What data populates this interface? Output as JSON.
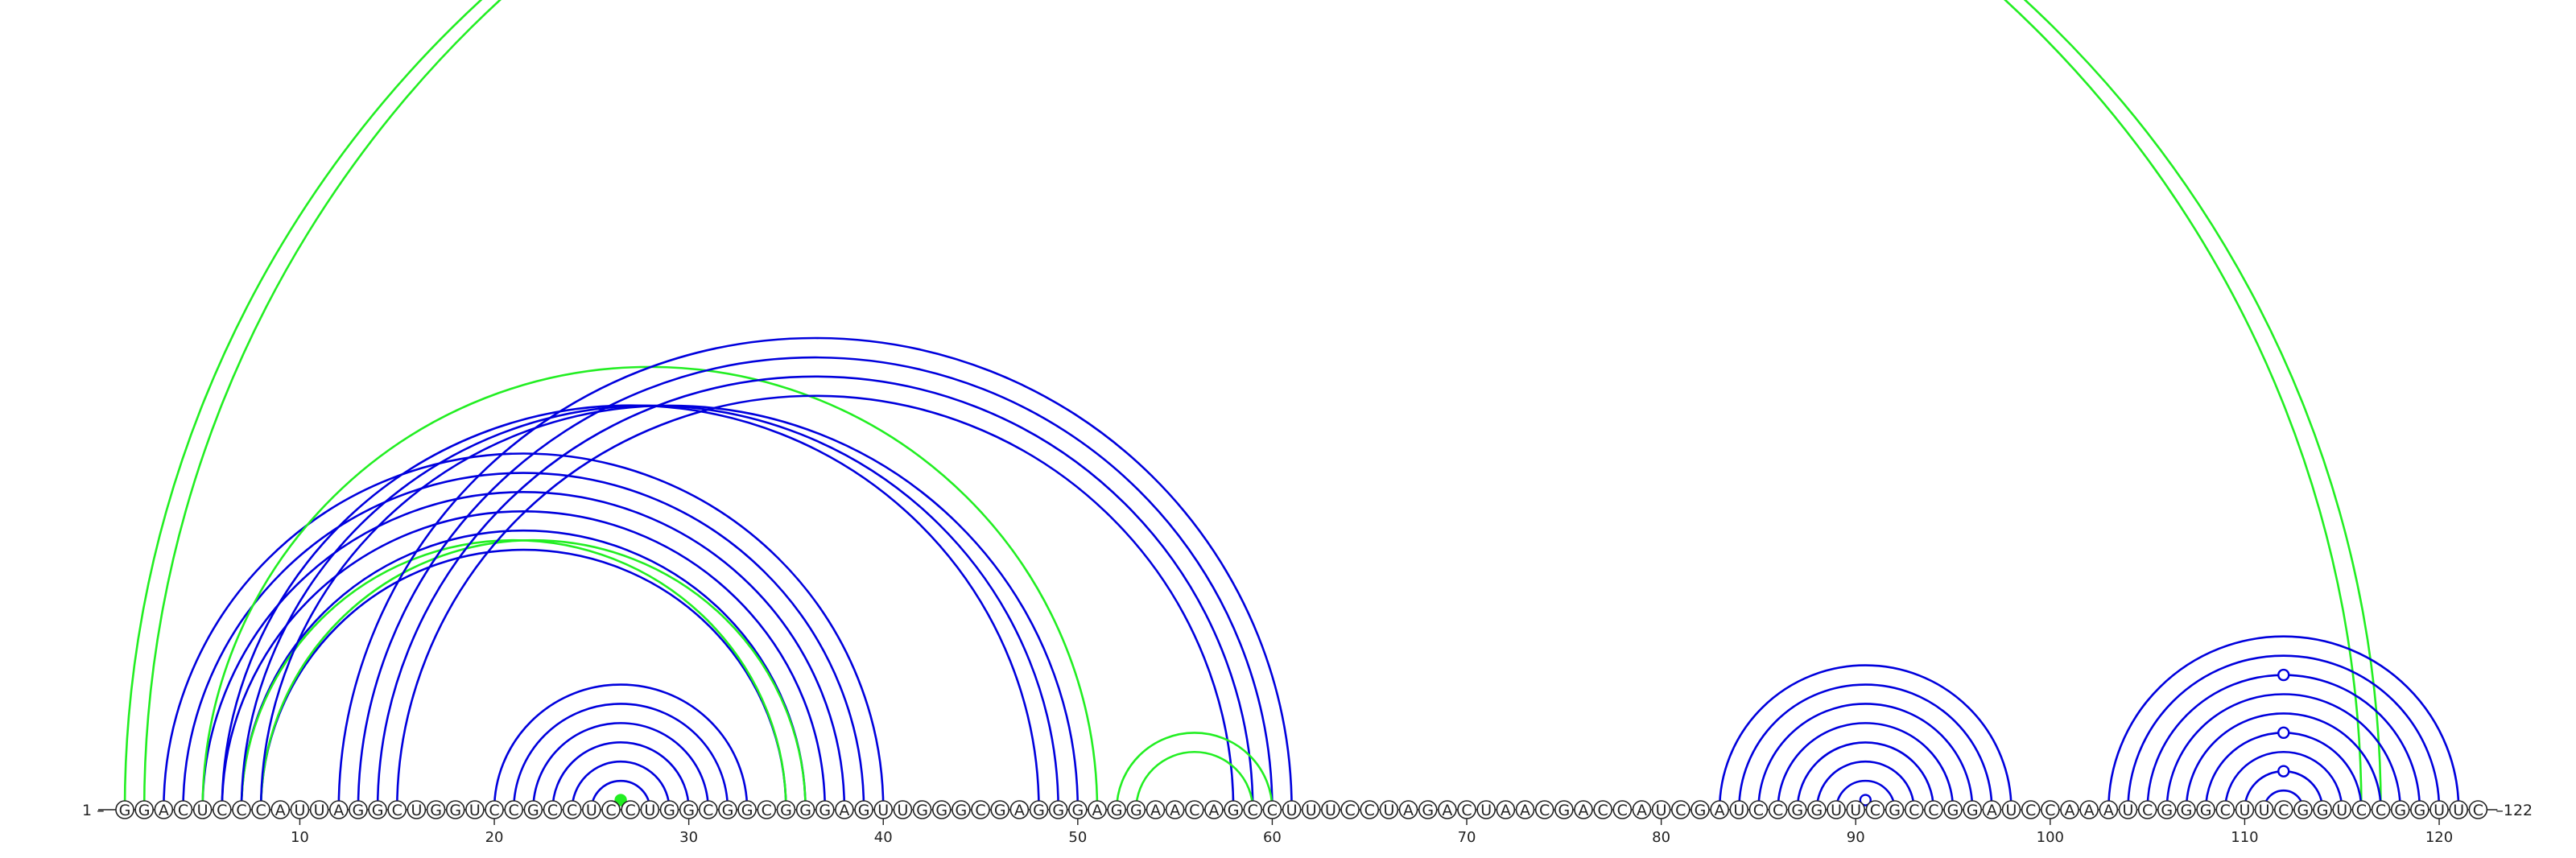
{
  "diagram": {
    "sequence": "GGACUCCCAUUAGGCUGGUCCGCCUCCUGGCGGCGGGAGUUGGGCGAGGGAGGAACAGCCUUUCCUAGACUAACGACCAUCGAUCCGGUUCGCCGGAUCCAAAUCGGGCUUCGGUCCGGUUC",
    "start_label": "1",
    "end_label": "122",
    "tick_positions": [
      10,
      20,
      30,
      40,
      50,
      60,
      70,
      80,
      90,
      100,
      110,
      120
    ],
    "colors": {
      "primary": "#0000dd",
      "secondary": "#22ee22",
      "nucleotide": "#222222"
    },
    "arcs": [
      {
        "i": 1,
        "j": 116,
        "color": "secondary"
      },
      {
        "i": 2,
        "j": 117,
        "color": "secondary"
      },
      {
        "i": 3,
        "j": 40,
        "color": "primary"
      },
      {
        "i": 4,
        "j": 39,
        "color": "primary"
      },
      {
        "i": 5,
        "j": 38,
        "color": "primary"
      },
      {
        "i": 6,
        "j": 37,
        "color": "primary"
      },
      {
        "i": 7,
        "j": 36,
        "color": "primary"
      },
      {
        "i": 8,
        "j": 35,
        "color": "primary"
      },
      {
        "i": 5,
        "j": 51,
        "color": "secondary"
      },
      {
        "i": 7,
        "j": 35,
        "color": "secondary"
      },
      {
        "i": 8,
        "j": 36,
        "color": "secondary"
      },
      {
        "i": 6,
        "j": 48,
        "color": "primary"
      },
      {
        "i": 7,
        "j": 49,
        "color": "primary"
      },
      {
        "i": 8,
        "j": 50,
        "color": "primary"
      },
      {
        "i": 12,
        "j": 61,
        "color": "primary"
      },
      {
        "i": 13,
        "j": 60,
        "color": "primary"
      },
      {
        "i": 14,
        "j": 59,
        "color": "primary"
      },
      {
        "i": 15,
        "j": 58,
        "color": "primary"
      },
      {
        "i": 20,
        "j": 33,
        "color": "primary"
      },
      {
        "i": 21,
        "j": 32,
        "color": "primary"
      },
      {
        "i": 22,
        "j": 31,
        "color": "primary"
      },
      {
        "i": 23,
        "j": 30,
        "color": "primary"
      },
      {
        "i": 24,
        "j": 29,
        "color": "primary"
      },
      {
        "i": 25,
        "j": 28,
        "color": "primary"
      },
      {
        "i": 26,
        "j": 27,
        "color": "secondary",
        "marker": true
      },
      {
        "i": 52,
        "j": 60,
        "color": "secondary"
      },
      {
        "i": 53,
        "j": 59,
        "color": "secondary"
      },
      {
        "i": 83,
        "j": 98,
        "color": "primary"
      },
      {
        "i": 84,
        "j": 97,
        "color": "primary"
      },
      {
        "i": 85,
        "j": 96,
        "color": "primary"
      },
      {
        "i": 86,
        "j": 95,
        "color": "primary"
      },
      {
        "i": 87,
        "j": 94,
        "color": "primary"
      },
      {
        "i": 88,
        "j": 93,
        "color": "primary"
      },
      {
        "i": 89,
        "j": 92,
        "color": "primary"
      },
      {
        "i": 90,
        "j": 91,
        "color": "primary",
        "marker": true
      },
      {
        "i": 103,
        "j": 121,
        "color": "primary"
      },
      {
        "i": 104,
        "j": 120,
        "color": "primary"
      },
      {
        "i": 105,
        "j": 119,
        "color": "primary",
        "marker": true
      },
      {
        "i": 106,
        "j": 118,
        "color": "primary"
      },
      {
        "i": 107,
        "j": 117,
        "color": "primary"
      },
      {
        "i": 108,
        "j": 116,
        "color": "primary",
        "marker": true
      },
      {
        "i": 109,
        "j": 115,
        "color": "primary"
      },
      {
        "i": 110,
        "j": 114,
        "color": "primary",
        "marker": true
      },
      {
        "i": 111,
        "j": 113,
        "color": "primary"
      }
    ]
  }
}
